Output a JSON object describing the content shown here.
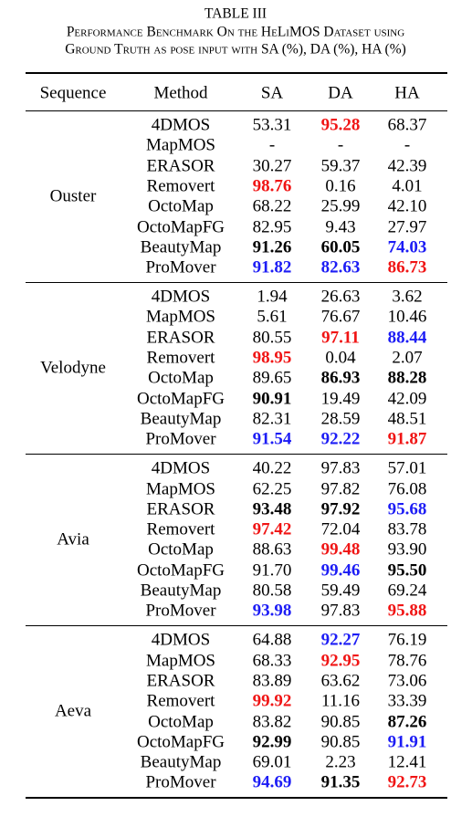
{
  "caption": {
    "label": "TABLE III",
    "line1": "Performance Benchmark On the HeLiMOS Dataset using",
    "line2": "Ground Truth as pose input with SA (%), DA (%), HA (%)"
  },
  "highlight_colors": {
    "red": "#f01414",
    "blue": "#1c1cf5",
    "bold": "#000000"
  },
  "table": {
    "header": [
      "Sequence",
      "Method",
      "SA",
      "DA",
      "HA"
    ],
    "groups": [
      {
        "name": "Ouster",
        "rows": [
          {
            "method": "4DMOS",
            "cells": [
              "53.31",
              {
                "text": "95.28",
                "style": "red"
              },
              "68.37"
            ]
          },
          {
            "method": "MapMOS",
            "cells": [
              "-",
              "-",
              "-"
            ]
          },
          {
            "method": "ERASOR",
            "cells": [
              "30.27",
              "59.37",
              "42.39"
            ]
          },
          {
            "method": "Removert",
            "cells": [
              {
                "text": "98.76",
                "style": "red"
              },
              "0.16",
              "4.01"
            ]
          },
          {
            "method": "OctoMap",
            "cells": [
              "68.22",
              "25.99",
              "42.10"
            ]
          },
          {
            "method": "OctoMapFG",
            "cells": [
              "82.95",
              "9.43",
              "27.97"
            ]
          },
          {
            "method": "BeautyMap",
            "cells": [
              {
                "text": "91.26",
                "style": "bold"
              },
              {
                "text": "60.05",
                "style": "bold"
              },
              {
                "text": "74.03",
                "style": "blue"
              }
            ]
          },
          {
            "method": "ProMover",
            "cells": [
              {
                "text": "91.82",
                "style": "blue"
              },
              {
                "text": "82.63",
                "style": "blue"
              },
              {
                "text": "86.73",
                "style": "red"
              }
            ]
          }
        ]
      },
      {
        "name": "Velodyne",
        "rows": [
          {
            "method": "4DMOS",
            "cells": [
              "1.94",
              "26.63",
              "3.62"
            ]
          },
          {
            "method": "MapMOS",
            "cells": [
              "5.61",
              "76.67",
              "10.46"
            ]
          },
          {
            "method": "ERASOR",
            "cells": [
              "80.55",
              {
                "text": "97.11",
                "style": "red"
              },
              {
                "text": "88.44",
                "style": "blue"
              }
            ]
          },
          {
            "method": "Removert",
            "cells": [
              {
                "text": "98.95",
                "style": "red"
              },
              "0.04",
              "2.07"
            ]
          },
          {
            "method": "OctoMap",
            "cells": [
              "89.65",
              {
                "text": "86.93",
                "style": "bold"
              },
              {
                "text": "88.28",
                "style": "bold"
              }
            ]
          },
          {
            "method": "OctoMapFG",
            "cells": [
              {
                "text": "90.91",
                "style": "bold"
              },
              "19.49",
              "42.09"
            ]
          },
          {
            "method": "BeautyMap",
            "cells": [
              "82.31",
              "28.59",
              "48.51"
            ]
          },
          {
            "method": "ProMover",
            "cells": [
              {
                "text": "91.54",
                "style": "blue"
              },
              {
                "text": "92.22",
                "style": "blue"
              },
              {
                "text": "91.87",
                "style": "red"
              }
            ]
          }
        ]
      },
      {
        "name": "Avia",
        "rows": [
          {
            "method": "4DMOS",
            "cells": [
              "40.22",
              "97.83",
              "57.01"
            ]
          },
          {
            "method": "MapMOS",
            "cells": [
              "62.25",
              "97.82",
              "76.08"
            ]
          },
          {
            "method": "ERASOR",
            "cells": [
              {
                "text": "93.48",
                "style": "bold"
              },
              {
                "text": "97.92",
                "style": "bold"
              },
              {
                "text": "95.68",
                "style": "blue"
              }
            ]
          },
          {
            "method": "Removert",
            "cells": [
              {
                "text": "97.42",
                "style": "red"
              },
              "72.04",
              "83.78"
            ]
          },
          {
            "method": "OctoMap",
            "cells": [
              "88.63",
              {
                "text": "99.48",
                "style": "red"
              },
              "93.90"
            ]
          },
          {
            "method": "OctoMapFG",
            "cells": [
              "91.70",
              {
                "text": "99.46",
                "style": "blue"
              },
              {
                "text": "95.50",
                "style": "bold"
              }
            ]
          },
          {
            "method": "BeautyMap",
            "cells": [
              "80.58",
              "59.49",
              "69.24"
            ]
          },
          {
            "method": "ProMover",
            "cells": [
              {
                "text": "93.98",
                "style": "blue"
              },
              "97.83",
              {
                "text": "95.88",
                "style": "red"
              }
            ]
          }
        ]
      },
      {
        "name": "Aeva",
        "rows": [
          {
            "method": "4DMOS",
            "cells": [
              "64.88",
              {
                "text": "92.27",
                "style": "blue"
              },
              "76.19"
            ]
          },
          {
            "method": "MapMOS",
            "cells": [
              "68.33",
              {
                "text": "92.95",
                "style": "red"
              },
              "78.76"
            ]
          },
          {
            "method": "ERASOR",
            "cells": [
              "83.89",
              "63.62",
              "73.06"
            ]
          },
          {
            "method": "Removert",
            "cells": [
              {
                "text": "99.92",
                "style": "red"
              },
              "11.16",
              "33.39"
            ]
          },
          {
            "method": "OctoMap",
            "cells": [
              "83.82",
              "90.85",
              {
                "text": "87.26",
                "style": "bold"
              }
            ]
          },
          {
            "method": "OctoMapFG",
            "cells": [
              {
                "text": "92.99",
                "style": "bold"
              },
              "90.85",
              {
                "text": "91.91",
                "style": "blue"
              }
            ]
          },
          {
            "method": "BeautyMap",
            "cells": [
              "69.01",
              "2.23",
              "12.41"
            ]
          },
          {
            "method": "ProMover",
            "cells": [
              {
                "text": "94.69",
                "style": "blue"
              },
              {
                "text": "91.35",
                "style": "bold"
              },
              {
                "text": "92.73",
                "style": "red"
              }
            ]
          }
        ]
      }
    ]
  }
}
